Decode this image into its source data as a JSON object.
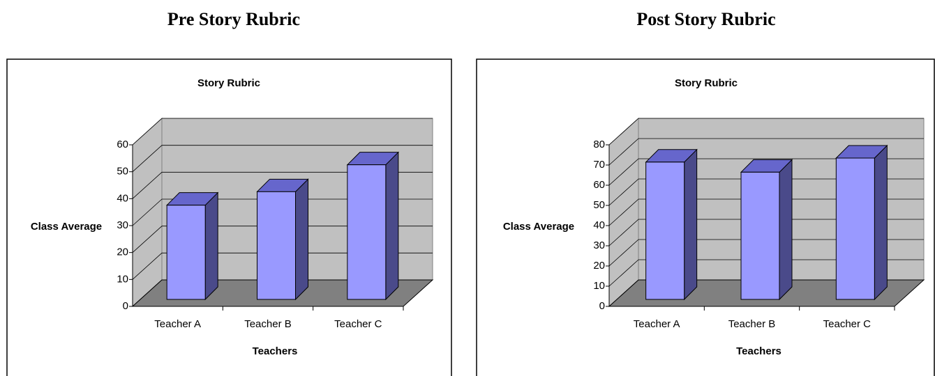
{
  "headings": [
    "Pre Story Rubric",
    "Post Story Rubric"
  ],
  "chart_data": [
    {
      "type": "bar3d",
      "title": "Story Rubric",
      "x_label": "Teachers",
      "y_label": "Class Average",
      "categories": [
        "Teacher A",
        "Teacher B",
        "Teacher C"
      ],
      "values": [
        35,
        40,
        50
      ],
      "color": "#9999ff",
      "ylim": [
        0,
        60
      ],
      "yticks": [
        0,
        10,
        20,
        30,
        40,
        50,
        60
      ],
      "grid": true
    },
    {
      "type": "bar3d",
      "title": "Story Rubric",
      "x_label": "Teachers",
      "y_label": "Class Average",
      "categories": [
        "Teacher A",
        "Teacher B",
        "Teacher C"
      ],
      "values": [
        68,
        63,
        70
      ],
      "color": "#9999ff",
      "ylim": [
        0,
        80
      ],
      "yticks": [
        0,
        10,
        20,
        30,
        40,
        50,
        60,
        70,
        80
      ],
      "grid": true
    }
  ]
}
